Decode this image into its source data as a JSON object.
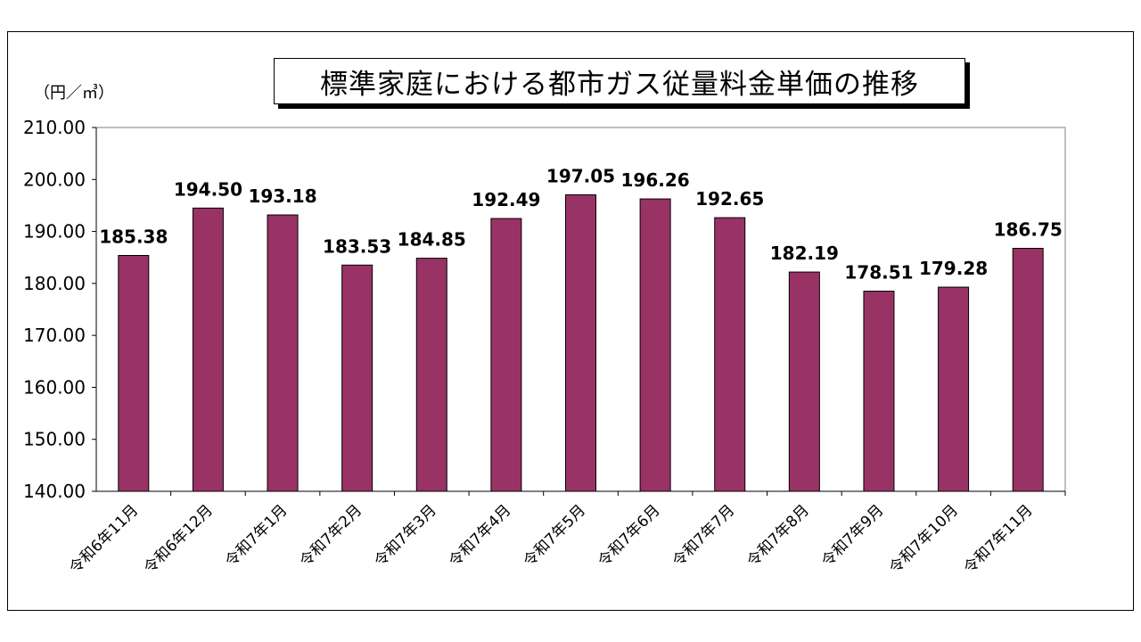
{
  "chart_data": {
    "type": "bar",
    "title": "標準家庭における都市ガス従量料金単価の推移",
    "ylabel": "（円／㎥）",
    "xlabel": "",
    "ylim": [
      140,
      210
    ],
    "yticks": [
      "140.00",
      "150.00",
      "160.00",
      "170.00",
      "180.00",
      "190.00",
      "200.00",
      "210.00"
    ],
    "categories": [
      "令和6年11月",
      "令和6年12月",
      "令和7年1月",
      "令和7年2月",
      "令和7年3月",
      "令和7年4月",
      "令和7年5月",
      "令和7年6月",
      "令和7年7月",
      "令和7年8月",
      "令和7年9月",
      "令和7年10月",
      "令和7年11月"
    ],
    "values": [
      185.38,
      194.5,
      193.18,
      183.53,
      184.85,
      192.49,
      197.05,
      196.26,
      192.65,
      182.19,
      178.51,
      179.28,
      186.75
    ],
    "value_labels": [
      "185.38",
      "194.50",
      "193.18",
      "183.53",
      "184.85",
      "192.49",
      "197.05",
      "196.26",
      "192.65",
      "182.19",
      "178.51",
      "179.28",
      "186.75"
    ],
    "grid": false,
    "legend": "none",
    "bar_color": "#993366"
  }
}
